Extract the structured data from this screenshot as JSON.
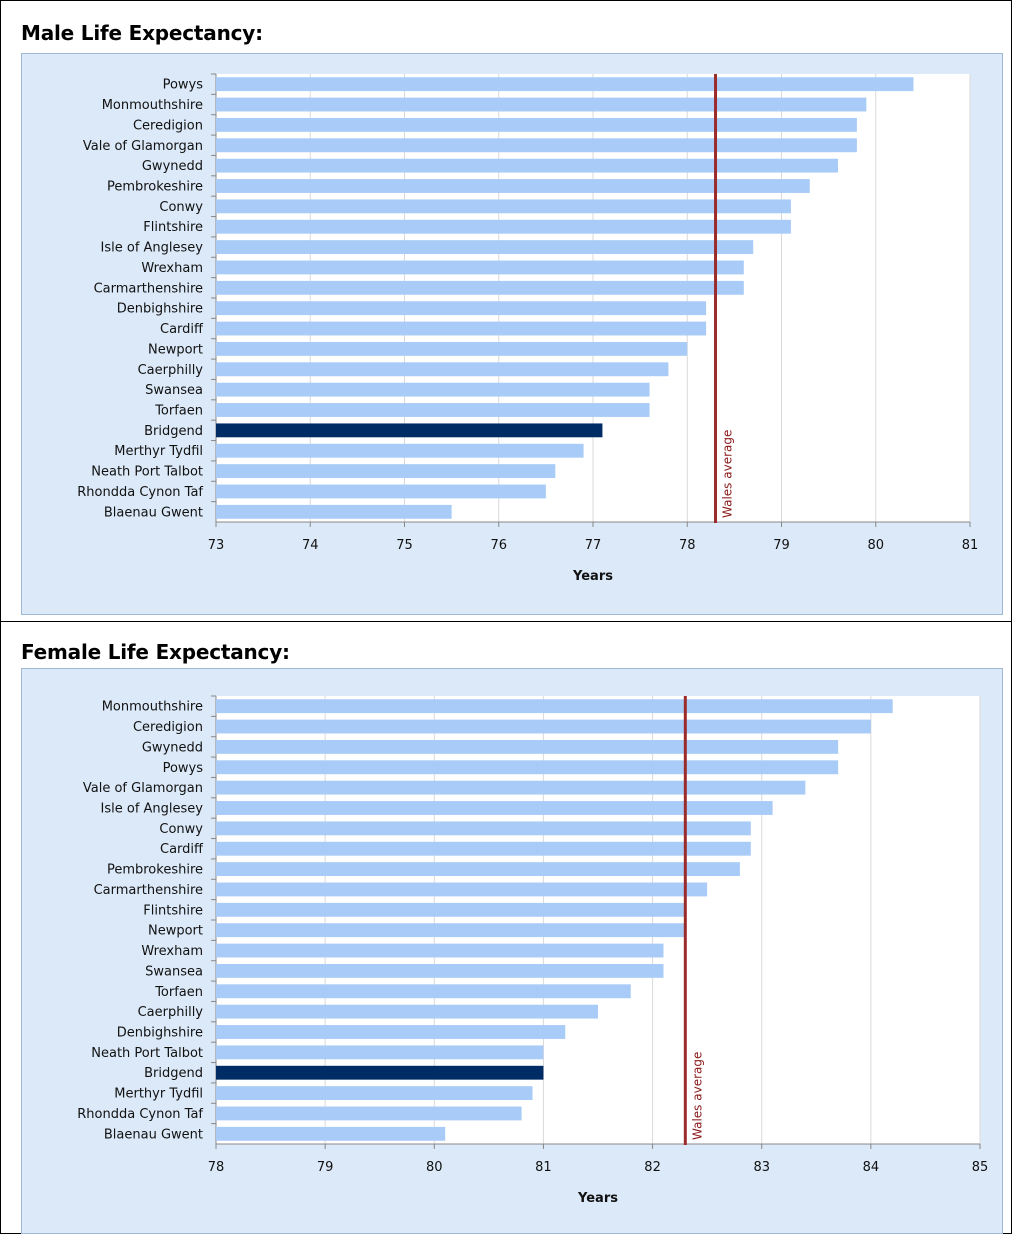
{
  "colors": {
    "bar": "#a8cbf7",
    "highlight_bar": "#002c66",
    "reference_line": "#9b2c2c",
    "chart_background": "#dce9f8",
    "plot_background": "#ffffff",
    "gridline": "#d9d9d9"
  },
  "chart_data": [
    {
      "type": "bar",
      "orientation": "horizontal",
      "title": "Male Life Expectancy:",
      "xlabel": "Years",
      "xlim": [
        73,
        81
      ],
      "xticks": [
        73,
        74,
        75,
        76,
        77,
        78,
        79,
        80,
        81
      ],
      "grid": true,
      "highlight": "Bridgend",
      "reference_line": {
        "label": "Wales average",
        "value": 78.3
      },
      "categories": [
        "Powys",
        "Monmouthshire",
        "Ceredigion",
        "Vale of Glamorgan",
        "Gwynedd",
        "Pembrokeshire",
        "Conwy",
        "Flintshire",
        "Isle of Anglesey",
        "Wrexham",
        "Carmarthenshire",
        "Denbighshire",
        "Cardiff",
        "Newport",
        "Caerphilly",
        "Swansea",
        "Torfaen",
        "Bridgend",
        "Merthyr Tydfil",
        "Neath Port Talbot",
        "Rhondda Cynon Taf",
        "Blaenau Gwent"
      ],
      "values": [
        80.4,
        79.9,
        79.8,
        79.8,
        79.6,
        79.3,
        79.1,
        79.1,
        78.7,
        78.6,
        78.6,
        78.2,
        78.2,
        78.0,
        77.8,
        77.6,
        77.6,
        77.1,
        76.9,
        76.6,
        76.5,
        75.5
      ]
    },
    {
      "type": "bar",
      "orientation": "horizontal",
      "title": "Female Life Expectancy:",
      "xlabel": "Years",
      "xlim": [
        78,
        85
      ],
      "xticks": [
        78,
        79,
        80,
        81,
        82,
        83,
        84,
        85
      ],
      "grid": true,
      "highlight": "Bridgend",
      "reference_line": {
        "label": "Wales average",
        "value": 82.3
      },
      "categories": [
        "Monmouthshire",
        "Ceredigion",
        "Gwynedd",
        "Powys",
        "Vale of Glamorgan",
        "Isle of Anglesey",
        "Conwy",
        "Cardiff",
        "Pembrokeshire",
        "Carmarthenshire",
        "Flintshire",
        "Newport",
        "Wrexham",
        "Swansea",
        "Torfaen",
        "Caerphilly",
        "Denbighshire",
        "Neath Port Talbot",
        "Bridgend",
        "Merthyr Tydfil",
        "Rhondda Cynon Taf",
        "Blaenau Gwent"
      ],
      "values": [
        84.2,
        84.0,
        83.7,
        83.7,
        83.4,
        83.1,
        82.9,
        82.9,
        82.8,
        82.5,
        82.3,
        82.3,
        82.1,
        82.1,
        81.8,
        81.5,
        81.2,
        81.0,
        81.0,
        80.9,
        80.8,
        80.1
      ]
    }
  ]
}
